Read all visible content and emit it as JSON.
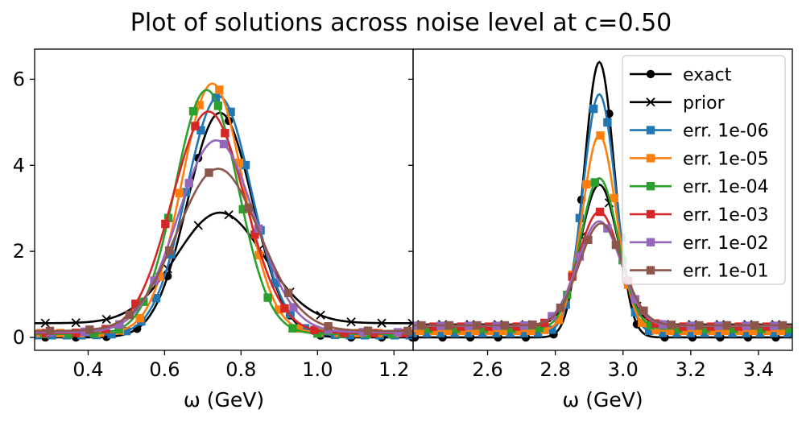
{
  "title": "Plot of solutions across noise level at c=0.50",
  "colors": {
    "exact": "#000000",
    "prior": "#000000",
    "err1e06": "#1f77b4",
    "err1e05": "#ff7f0e",
    "err1e04": "#2ca02c",
    "err1e03": "#d62728",
    "err1e02": "#9467bd",
    "err1e01": "#8c564b"
  },
  "legend": {
    "placement": "upper-right of right panel",
    "entries": [
      {
        "key": "exact",
        "label": "exact",
        "marker": "circle"
      },
      {
        "key": "prior",
        "label": "prior",
        "marker": "x"
      },
      {
        "key": "err1e06",
        "label": "err. 1e-06",
        "marker": "square"
      },
      {
        "key": "err1e05",
        "label": "err. 1e-05",
        "marker": "square"
      },
      {
        "key": "err1e04",
        "label": "err. 1e-04",
        "marker": "square"
      },
      {
        "key": "err1e03",
        "label": "err. 1e-03",
        "marker": "square"
      },
      {
        "key": "err1e02",
        "label": "err. 1e-02",
        "marker": "square"
      },
      {
        "key": "err1e01",
        "label": "err. 1e-01",
        "marker": "square"
      }
    ]
  },
  "chart_data": [
    {
      "type": "line",
      "xlabel": "ω (GeV)",
      "ylabel": "",
      "xlim": [
        0.26,
        1.25
      ],
      "ylim": [
        -0.3,
        6.7
      ],
      "xticks": [
        "0.4",
        "0.6",
        "0.8",
        "1.0",
        "1.2"
      ],
      "xtick_values": [
        0.4,
        0.6,
        0.8,
        1.0,
        1.2
      ],
      "yticks": [
        "0",
        "2",
        "4",
        "6"
      ],
      "ytick_values": [
        0,
        2,
        4,
        6
      ],
      "grid": false,
      "series": [
        {
          "key": "exact",
          "name": "exact",
          "marker": "circle",
          "peak": 5.22,
          "center": 0.745,
          "sigma": 0.085,
          "base": 0.0,
          "markevery": 0.08,
          "markoffset": 0.028
        },
        {
          "key": "prior",
          "name": "prior",
          "marker": "x",
          "peak": 2.9,
          "center": 0.745,
          "sigma": 0.115,
          "base": 0.33,
          "markevery": 0.08,
          "markoffset": 0.028
        },
        {
          "key": "err1e06",
          "name": "err. 1e-06",
          "marker": "square",
          "peak": 5.6,
          "center": 0.742,
          "sigma": 0.085,
          "base": 0.05,
          "markevery": 0.039,
          "markoffset": 0.006
        },
        {
          "key": "err1e05",
          "name": "err. 1e-05",
          "marker": "square",
          "peak": 5.9,
          "center": 0.725,
          "sigma": 0.08,
          "base": 0.1,
          "markevery": 0.052,
          "markoffset": 0.015
        },
        {
          "key": "err1e04",
          "name": "err. 1e-04",
          "marker": "square",
          "peak": 5.75,
          "center": 0.71,
          "sigma": 0.082,
          "base": 0.08,
          "markevery": 0.065,
          "markoffset": 0.025
        },
        {
          "key": "err1e03",
          "name": "err. 1e-03",
          "marker": "square",
          "peak": 5.25,
          "center": 0.715,
          "sigma": 0.095,
          "base": 0.1,
          "markevery": 0.078,
          "markoffset": 0.03
        },
        {
          "key": "err1e02",
          "name": "err. 1e-02",
          "marker": "square",
          "peak": 4.58,
          "center": 0.735,
          "sigma": 0.1,
          "base": 0.12,
          "markevery": 0.091,
          "markoffset": 0.04
        },
        {
          "key": "err1e01",
          "name": "err. 1e-01",
          "marker": "square",
          "peak": 3.92,
          "center": 0.74,
          "sigma": 0.108,
          "base": 0.15,
          "markevery": 0.104,
          "markoffset": 0.04
        }
      ]
    },
    {
      "type": "line",
      "xlabel": "ω (GeV)",
      "ylabel": "",
      "xlim": [
        2.38,
        3.5
      ],
      "ylim": [
        -0.3,
        6.7
      ],
      "xticks": [
        "2.6",
        "2.8",
        "3.0",
        "3.2",
        "3.4"
      ],
      "xtick_values": [
        2.6,
        2.8,
        3.0,
        3.2,
        3.4
      ],
      "yticks": [],
      "ytick_values": [
        0,
        2,
        4,
        6
      ],
      "grid": false,
      "series": [
        {
          "key": "exact",
          "name": "exact",
          "marker": "circle",
          "peak": 6.4,
          "center": 2.93,
          "sigma": 0.045,
          "base": 0.0,
          "markevery": 0.082,
          "markoffset": 0.005
        },
        {
          "key": "prior",
          "name": "prior",
          "marker": "x",
          "peak": 3.55,
          "center": 2.93,
          "sigma": 0.055,
          "base": 0.3,
          "markevery": 0.082,
          "markoffset": 0.005
        },
        {
          "key": "err1e06",
          "name": "err. 1e-06",
          "marker": "square",
          "peak": 5.65,
          "center": 2.93,
          "sigma": 0.048,
          "base": 0.1,
          "markevery": 0.041,
          "markoffset": 0.0
        },
        {
          "key": "err1e05",
          "name": "err. 1e-05",
          "marker": "square",
          "peak": 4.7,
          "center": 2.93,
          "sigma": 0.05,
          "base": 0.15,
          "markevery": 0.041,
          "markoffset": 0.02
        },
        {
          "key": "err1e04",
          "name": "err. 1e-04",
          "marker": "square",
          "peak": 3.7,
          "center": 2.93,
          "sigma": 0.055,
          "base": 0.2,
          "markevery": 0.082,
          "markoffset": 0.045
        },
        {
          "key": "err1e03",
          "name": "err. 1e-03",
          "marker": "square",
          "peak": 2.92,
          "center": 2.93,
          "sigma": 0.062,
          "base": 0.25,
          "markevery": 0.082,
          "markoffset": 0.06
        },
        {
          "key": "err1e02",
          "name": "err. 1e-02",
          "marker": "square",
          "peak": 2.7,
          "center": 2.93,
          "sigma": 0.064,
          "base": 0.27,
          "markevery": 0.082,
          "markoffset": 0.0
        },
        {
          "key": "err1e01",
          "name": "err. 1e-01",
          "marker": "square",
          "peak": 2.65,
          "center": 2.935,
          "sigma": 0.064,
          "base": 0.28,
          "markevery": 0.082,
          "markoffset": 0.025
        }
      ]
    }
  ]
}
